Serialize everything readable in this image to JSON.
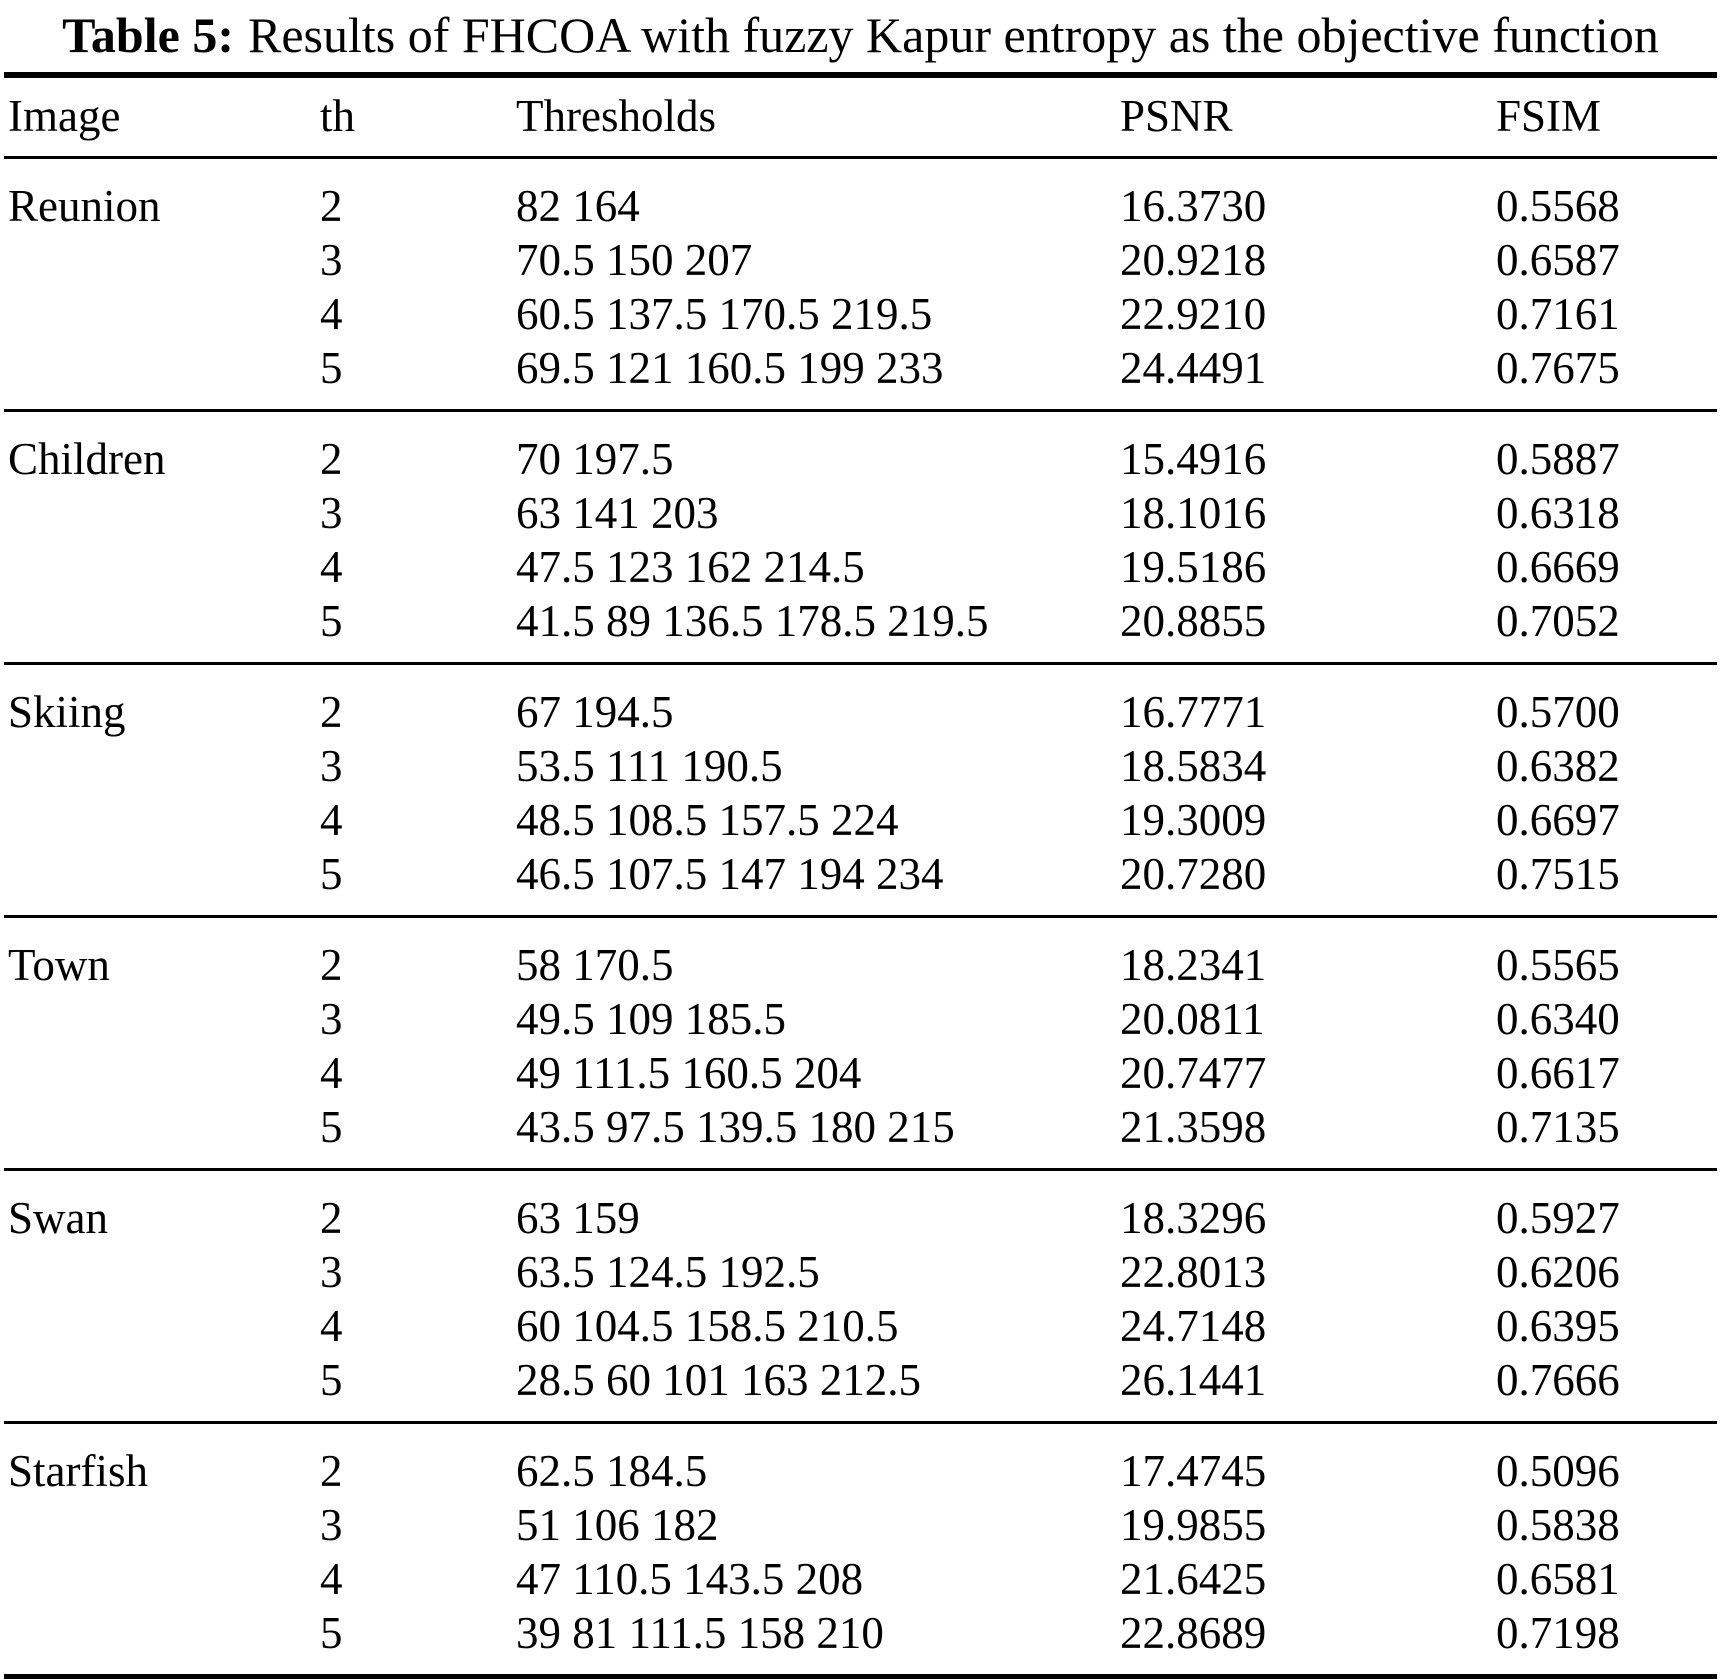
{
  "caption": {
    "label": "Table 5:",
    "text": "Results of FHCOA with fuzzy Kapur entropy as the objective function"
  },
  "columns": [
    "Image",
    "th",
    "Thresholds",
    "PSNR",
    "FSIM"
  ],
  "groups": [
    {
      "image": "Reunion",
      "rows": [
        {
          "th": "2",
          "thresholds": "82 164",
          "psnr": "16.3730",
          "fsim": "0.5568"
        },
        {
          "th": "3",
          "thresholds": "70.5 150 207",
          "psnr": "20.9218",
          "fsim": "0.6587"
        },
        {
          "th": "4",
          "thresholds": "60.5 137.5 170.5 219.5",
          "psnr": "22.9210",
          "fsim": "0.7161"
        },
        {
          "th": "5",
          "thresholds": "69.5 121 160.5 199 233",
          "psnr": "24.4491",
          "fsim": "0.7675"
        }
      ]
    },
    {
      "image": "Children",
      "rows": [
        {
          "th": "2",
          "thresholds": "70 197.5",
          "psnr": "15.4916",
          "fsim": "0.5887"
        },
        {
          "th": "3",
          "thresholds": "63 141 203",
          "psnr": "18.1016",
          "fsim": "0.6318"
        },
        {
          "th": "4",
          "thresholds": "47.5 123 162 214.5",
          "psnr": "19.5186",
          "fsim": "0.6669"
        },
        {
          "th": "5",
          "thresholds": "41.5 89 136.5 178.5 219.5",
          "psnr": "20.8855",
          "fsim": "0.7052"
        }
      ]
    },
    {
      "image": "Skiing",
      "rows": [
        {
          "th": "2",
          "thresholds": "67 194.5",
          "psnr": "16.7771",
          "fsim": "0.5700"
        },
        {
          "th": "3",
          "thresholds": "53.5 111 190.5",
          "psnr": "18.5834",
          "fsim": "0.6382"
        },
        {
          "th": "4",
          "thresholds": "48.5 108.5 157.5 224",
          "psnr": "19.3009",
          "fsim": "0.6697"
        },
        {
          "th": "5",
          "thresholds": "46.5 107.5 147 194 234",
          "psnr": "20.7280",
          "fsim": "0.7515"
        }
      ]
    },
    {
      "image": "Town",
      "rows": [
        {
          "th": "2",
          "thresholds": "58 170.5",
          "psnr": "18.2341",
          "fsim": "0.5565"
        },
        {
          "th": "3",
          "thresholds": "49.5 109 185.5",
          "psnr": "20.0811",
          "fsim": "0.6340"
        },
        {
          "th": "4",
          "thresholds": "49 111.5 160.5 204",
          "psnr": "20.7477",
          "fsim": "0.6617"
        },
        {
          "th": "5",
          "thresholds": "43.5 97.5 139.5 180 215",
          "psnr": "21.3598",
          "fsim": "0.7135"
        }
      ]
    },
    {
      "image": "Swan",
      "rows": [
        {
          "th": "2",
          "thresholds": "63 159",
          "psnr": "18.3296",
          "fsim": "0.5927"
        },
        {
          "th": "3",
          "thresholds": "63.5 124.5 192.5",
          "psnr": "22.8013",
          "fsim": "0.6206"
        },
        {
          "th": "4",
          "thresholds": "60 104.5 158.5 210.5",
          "psnr": "24.7148",
          "fsim": "0.6395"
        },
        {
          "th": "5",
          "thresholds": "28.5 60 101 163 212.5",
          "psnr": "26.1441",
          "fsim": "0.7666"
        }
      ]
    },
    {
      "image": "Starfish",
      "rows": [
        {
          "th": "2",
          "thresholds": "62.5 184.5",
          "psnr": "17.4745",
          "fsim": "0.5096"
        },
        {
          "th": "3",
          "thresholds": "51 106 182",
          "psnr": "19.9855",
          "fsim": "0.5838"
        },
        {
          "th": "4",
          "thresholds": "47 110.5 143.5 208",
          "psnr": "21.6425",
          "fsim": "0.6581"
        },
        {
          "th": "5",
          "thresholds": "39 81 111.5 158 210",
          "psnr": "22.8689",
          "fsim": "0.7198"
        }
      ]
    }
  ]
}
